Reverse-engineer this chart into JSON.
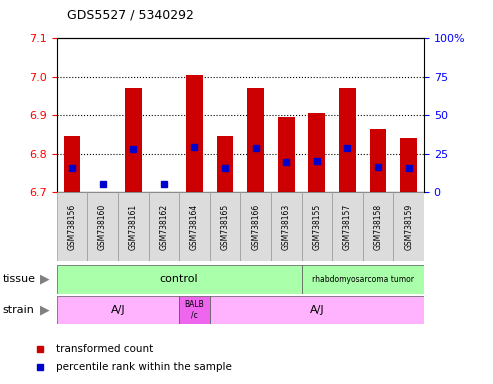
{
  "title": "GDS5527 / 5340292",
  "samples": [
    "GSM738156",
    "GSM738160",
    "GSM738161",
    "GSM738162",
    "GSM738164",
    "GSM738165",
    "GSM738166",
    "GSM738163",
    "GSM738155",
    "GSM738157",
    "GSM738158",
    "GSM738159"
  ],
  "transformed_counts": [
    6.845,
    6.7,
    6.97,
    6.7,
    7.005,
    6.847,
    6.97,
    6.895,
    6.905,
    6.97,
    6.865,
    6.84
  ],
  "percentile_rank_values": [
    6.762,
    6.72,
    6.812,
    6.72,
    6.816,
    6.762,
    6.814,
    6.778,
    6.782,
    6.814,
    6.765,
    6.762
  ],
  "ylim_left": [
    6.7,
    7.1
  ],
  "ylim_right": [
    0,
    100
  ],
  "yticks_left": [
    6.7,
    6.8,
    6.9,
    7.0,
    7.1
  ],
  "yticks_right": [
    0,
    25,
    50,
    75,
    100
  ],
  "bar_color": "#CC0000",
  "bar_base": 6.7,
  "percentile_color": "#0000CC",
  "legend_items": [
    {
      "color": "#CC0000",
      "label": "transformed count"
    },
    {
      "color": "#0000CC",
      "label": "percentile rank within the sample"
    }
  ]
}
